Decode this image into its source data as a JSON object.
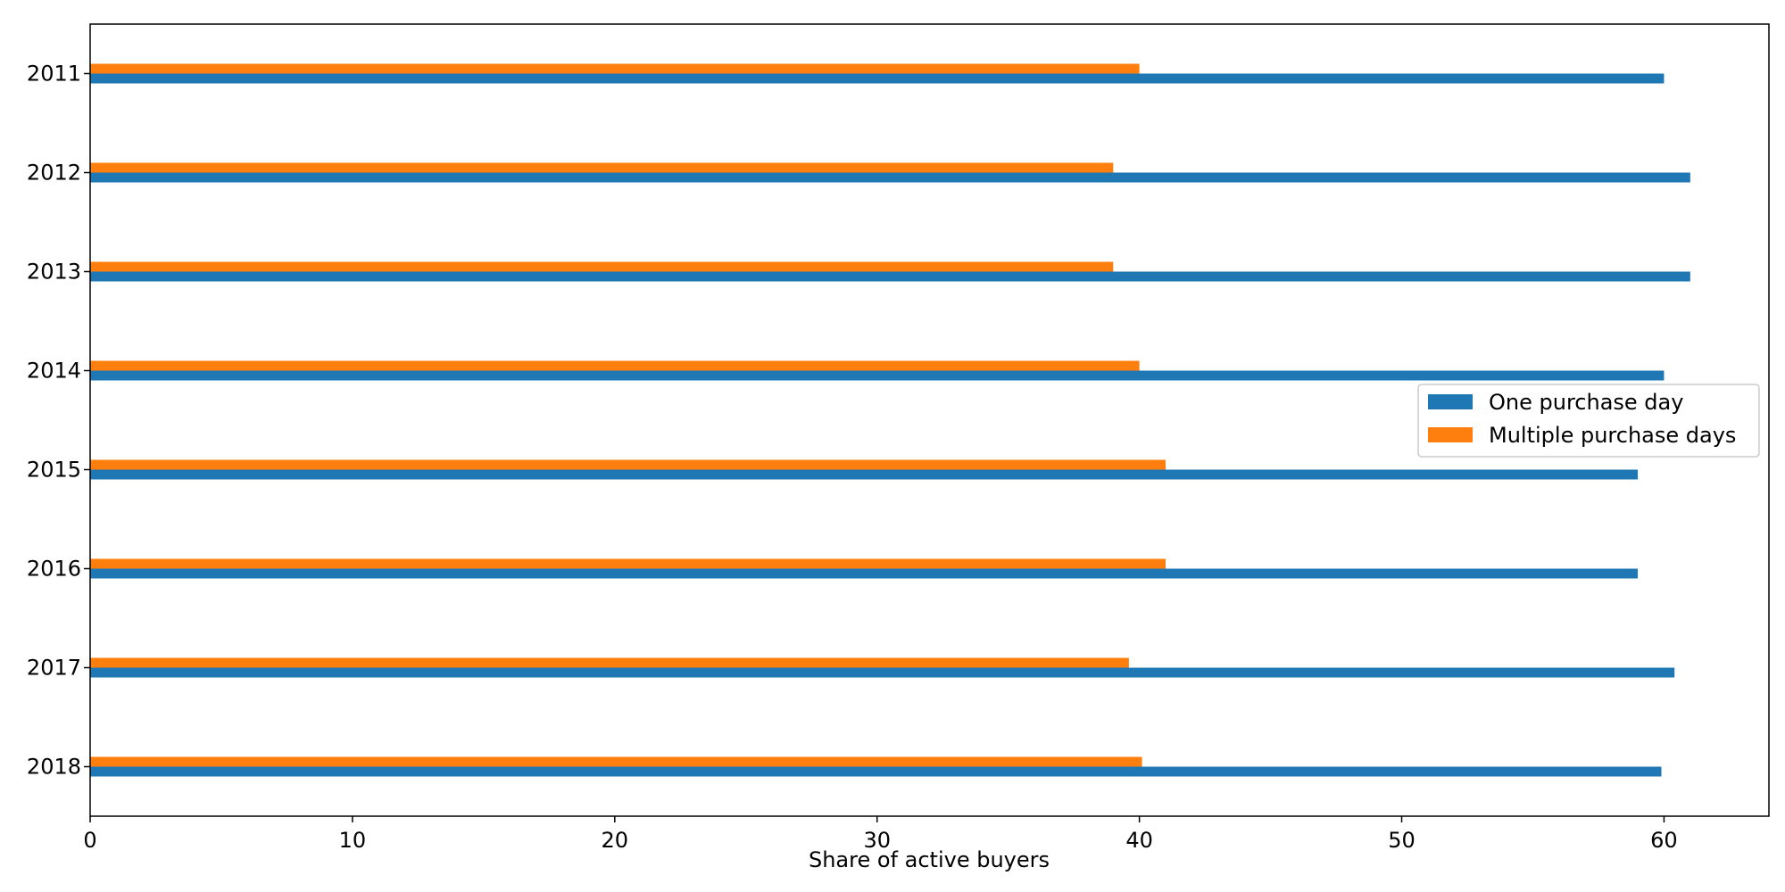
{
  "chart_data": {
    "type": "bar",
    "orientation": "horizontal",
    "categories": [
      "2011",
      "2012",
      "2013",
      "2014",
      "2015",
      "2016",
      "2017",
      "2018"
    ],
    "series": [
      {
        "name": "One purchase day",
        "values": [
          60.0,
          61.0,
          61.0,
          60.0,
          59.0,
          59.0,
          60.4,
          59.9
        ],
        "color": "#1f77b4"
      },
      {
        "name": "Multiple purchase days",
        "values": [
          40.0,
          39.0,
          39.0,
          40.0,
          41.0,
          41.0,
          39.6,
          40.1
        ],
        "color": "#ff7f0e"
      }
    ],
    "title": "",
    "xlabel": "Share of active buyers",
    "ylabel": "",
    "xlim": [
      0,
      64
    ],
    "xticks": [
      0,
      10,
      20,
      30,
      40,
      50,
      60
    ],
    "grid": false,
    "legend": {
      "placement": "center-right"
    }
  }
}
